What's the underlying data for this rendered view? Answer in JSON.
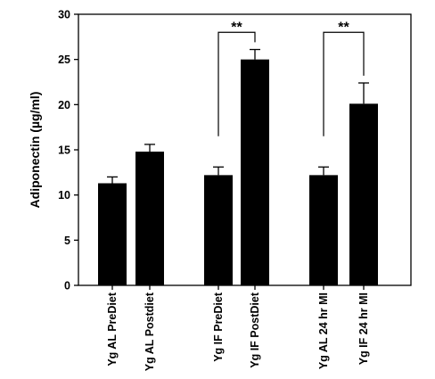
{
  "chart_data": {
    "type": "bar",
    "title": "",
    "xlabel": "",
    "ylabel": "Adiponectin (µg/ml)",
    "ylim": [
      0,
      30
    ],
    "yticks": [
      0,
      5,
      10,
      15,
      20,
      25,
      30
    ],
    "grid": false,
    "categories": [
      "Yg AL PreDiet",
      "Yg AL Postdiet",
      "Yg IF PreDiet",
      "Yg IF PostDiet",
      "Yg AL 24 hr MI",
      "Yg IF 24 hr MI"
    ],
    "groups": [
      [
        0,
        1
      ],
      [
        2,
        3
      ],
      [
        4,
        5
      ]
    ],
    "values": [
      11.3,
      14.8,
      12.2,
      25.0,
      12.2,
      20.1
    ],
    "errors": [
      0.7,
      0.8,
      0.9,
      1.1,
      0.9,
      2.3
    ],
    "bar_color": "#000000",
    "significance": [
      {
        "from": 2,
        "to": 3,
        "label": "**",
        "y": 28.0
      },
      {
        "from": 4,
        "to": 5,
        "label": "**",
        "y": 28.0
      }
    ]
  }
}
